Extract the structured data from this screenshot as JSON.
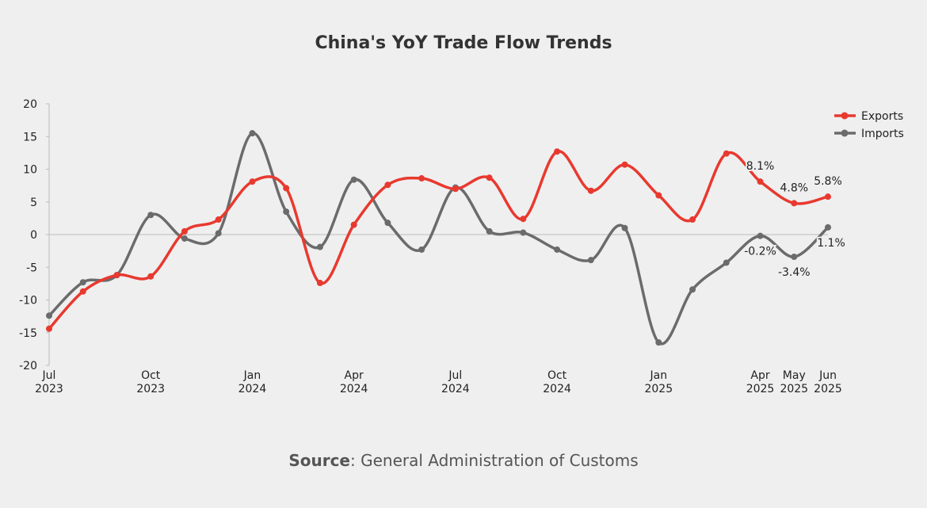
{
  "chart_data": {
    "type": "line",
    "title": "China's YoY Trade Flow Trends",
    "ylim": [
      -20,
      20
    ],
    "yticks": [
      20,
      15,
      10,
      5,
      0,
      -5,
      -10,
      -15,
      -20
    ],
    "x": [
      "Jul 2023",
      "Aug 2023",
      "Sep 2023",
      "Oct 2023",
      "Nov 2023",
      "Dec 2023",
      "Jan 2024",
      "Feb 2024",
      "Mar 2024",
      "Apr 2024",
      "May 2024",
      "Jun 2024",
      "Jul 2024",
      "Aug 2024",
      "Sep 2024",
      "Oct 2024",
      "Nov 2024",
      "Dec 2024",
      "Jan 2025",
      "Feb 2025",
      "Mar 2025",
      "Apr 2025",
      "May 2025",
      "Jun 2025"
    ],
    "xtick_labels": [
      {
        "index": 0,
        "month": "Jul",
        "year": "2023"
      },
      {
        "index": 3,
        "month": "Oct",
        "year": "2023"
      },
      {
        "index": 6,
        "month": "Jan",
        "year": "2024"
      },
      {
        "index": 9,
        "month": "Apr",
        "year": "2024"
      },
      {
        "index": 12,
        "month": "Jul",
        "year": "2024"
      },
      {
        "index": 15,
        "month": "Oct",
        "year": "2024"
      },
      {
        "index": 18,
        "month": "Jan",
        "year": "2025"
      },
      {
        "index": 21,
        "month": "Apr",
        "year": "2025"
      },
      {
        "index": 22,
        "month": "May",
        "year": "2025"
      },
      {
        "index": 23,
        "month": "Jun",
        "year": "2025"
      }
    ],
    "series": [
      {
        "name": "Exports",
        "color": "#e8392f",
        "values": [
          -14.4,
          -8.7,
          -6.2,
          -6.4,
          0.5,
          2.3,
          8.1,
          7.1,
          -7.4,
          1.5,
          7.6,
          8.6,
          7.0,
          8.7,
          2.4,
          12.7,
          6.7,
          10.7,
          6.0,
          2.3,
          12.4,
          8.1,
          4.8,
          5.8
        ],
        "data_labels": [
          {
            "index": 21,
            "text": "8.1%"
          },
          {
            "index": 22,
            "text": "4.8%"
          },
          {
            "index": 23,
            "text": "5.8%"
          }
        ]
      },
      {
        "name": "Imports",
        "color": "#6b6b6b",
        "values": [
          -12.4,
          -7.3,
          -6.2,
          3.0,
          -0.6,
          0.2,
          15.5,
          3.5,
          -1.9,
          8.4,
          1.8,
          -2.3,
          7.2,
          0.5,
          0.3,
          -2.3,
          -3.9,
          1.0,
          -16.5,
          -8.4,
          -4.3,
          -0.2,
          -3.4,
          1.1
        ],
        "data_labels": [
          {
            "index": 21,
            "text": "-0.2%"
          },
          {
            "index": 22,
            "text": "-3.4%"
          },
          {
            "index": 23,
            "text": "1.1%"
          }
        ]
      }
    ],
    "legend": "top-right",
    "grid": false
  },
  "source": {
    "label": "Source",
    "text": ": General Administration of Customs"
  }
}
